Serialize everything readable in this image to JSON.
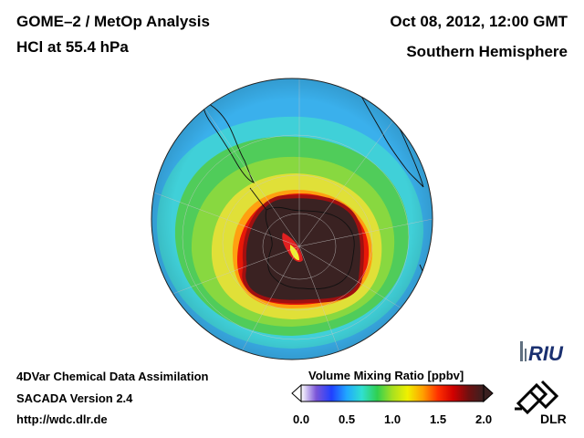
{
  "header": {
    "title_line1": "GOME–2 / MetOp Analysis",
    "title_line2": "HCl at 55.4 hPa",
    "date": "Oct 08, 2012, 12:00 GMT",
    "region": "Southern Hemisphere"
  },
  "footer": {
    "line1": "4DVar Chemical Data Assimilation",
    "line2": "SACADA Version 2.4",
    "url": "http://wdc.dlr.de"
  },
  "colorbar": {
    "title": "Volume Mixing Ratio [ppbv]",
    "ticks": [
      "0.0",
      "0.5",
      "1.0",
      "1.5",
      "2.0"
    ],
    "range": [
      0.0,
      2.0
    ],
    "colors": [
      "#ffffff",
      "#7a55d8",
      "#2040ff",
      "#20a8ff",
      "#30e0d0",
      "#30d050",
      "#a8e020",
      "#f0f000",
      "#ffa000",
      "#ff3000",
      "#d00000",
      "#701010",
      "#3a2020"
    ]
  },
  "logos": {
    "riu": "RIU",
    "dlr": "DLR"
  },
  "map": {
    "projection": "orthographic, south pole centered",
    "colors": {
      "ocean_outer": "#3ab0ec",
      "cyan_ring": "#40d0d8",
      "green_ring": "#60d060",
      "yellow_ring": "#d8e040",
      "red_edge": "#e01010",
      "core": "#3a2222"
    }
  }
}
